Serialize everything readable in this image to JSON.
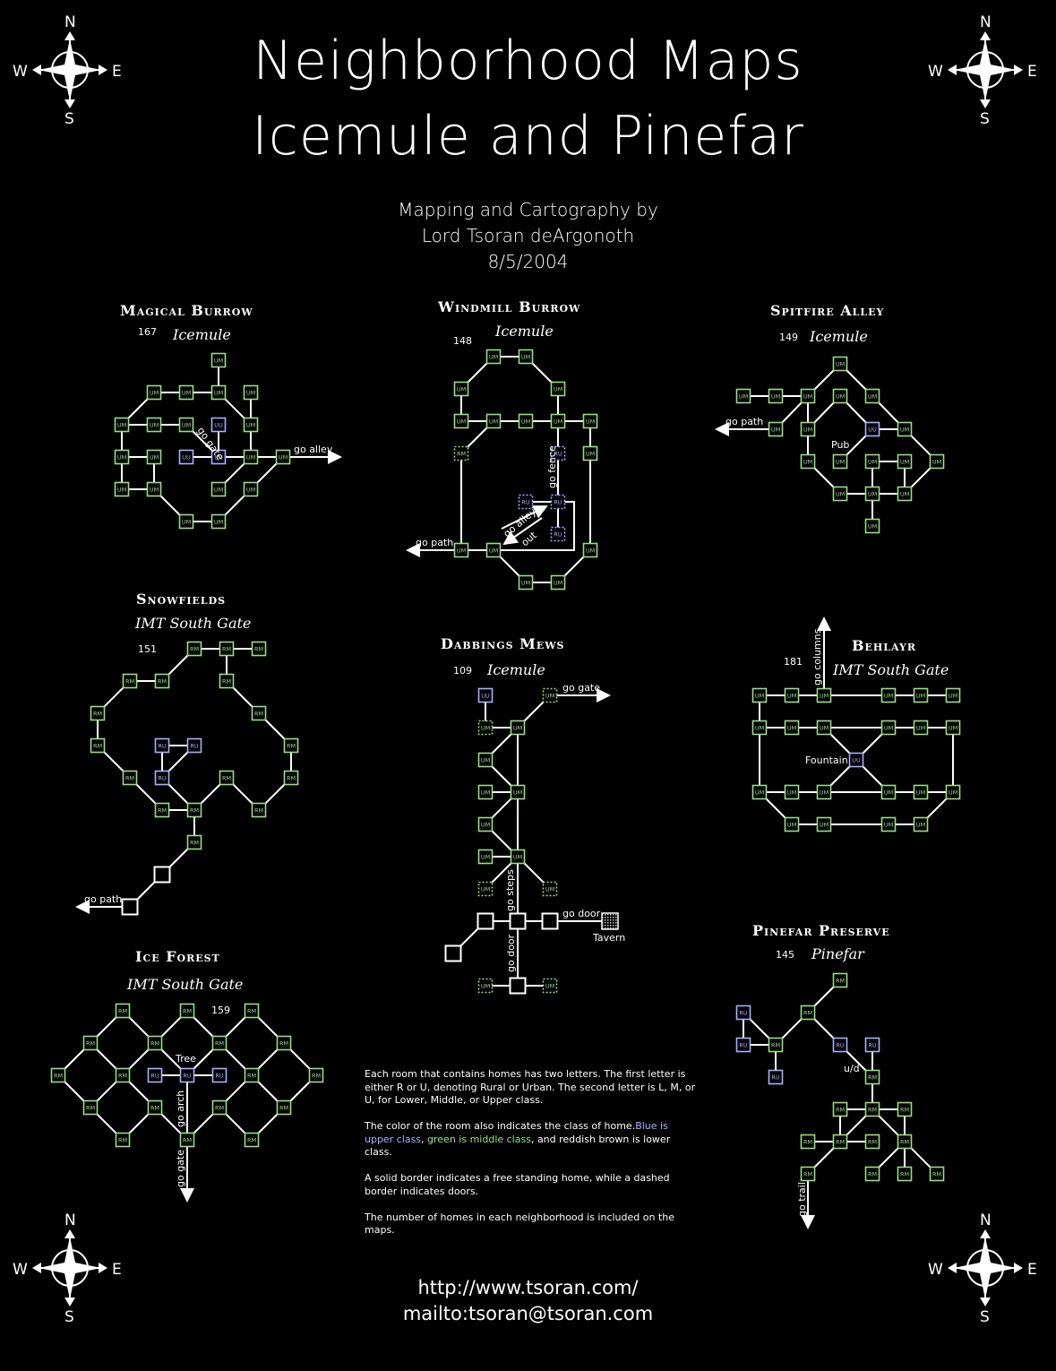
{
  "header": {
    "title_line1": "Neighborhood Maps",
    "title_line2": "Icemule and Pinefar",
    "credit_line1": "Mapping and Cartography by",
    "credit_line2": "Lord Tsoran deArgonoth",
    "credit_line3": "8/5/2004"
  },
  "compass": {
    "n": "N",
    "s": "S",
    "e": "E",
    "w": "W"
  },
  "room_colors": {
    "upper": "#aab0ff",
    "middle": "#99dd88",
    "lower": "#cc9977",
    "plain": "#ffffff"
  },
  "neighborhoods": {
    "magical_burrow": {
      "title": "Magical Burrow",
      "city": "Icemule",
      "count": "167"
    },
    "windmill_burrow": {
      "title": "Windmill Burrow",
      "city": "Icemule",
      "count": "148"
    },
    "spitfire_alley": {
      "title": "Spitfire Alley",
      "city": "Icemule",
      "count": "149"
    },
    "snowfields": {
      "title": "Snowfields",
      "city": "IMT South Gate",
      "count": "151"
    },
    "dabbings_mews": {
      "title": "Dabbings Mews",
      "city": "Icemule",
      "count": "109"
    },
    "behlayr": {
      "title": "Behlayr",
      "city": "IMT South Gate",
      "count": "181"
    },
    "ice_forest": {
      "title": "Ice Forest",
      "city": "IMT South Gate",
      "count": "159"
    },
    "pinefar_preserve": {
      "title": "Pinefar Preserve",
      "city": "Pinefar",
      "count": "145"
    }
  },
  "map_labels": {
    "go_alley": "go alley",
    "go_gate": "go gate",
    "go_path": "go path",
    "go_fence": "go fence",
    "out": "out",
    "pub": "Pub",
    "go_columns": "go columns",
    "fountain": "Fountain",
    "go_steps": "go steps",
    "go_door": "go door",
    "tavern": "Tavern",
    "tree": "Tree",
    "go_arch": "go arch",
    "go_trail": "go trail",
    "ud": "u/d"
  },
  "legend": {
    "p1": "Each room that contains homes has two letters.  The first letter is either R or U, denoting Rural or Urban.  The second letter is L, M, or U, for Lower, Middle, or Upper class.",
    "p2_prefix": "The color of the room also indicates the class of home.",
    "p2_blue": "Blue is upper class",
    "p2_sep": ", ",
    "p2_green": "green is middle class",
    "p2_brown": ", and reddish brown is lower class.",
    "p3": "A solid border indicates a free standing home, while a dashed border indicates doors.",
    "p4": "The number of homes in each neighborhood is included on the maps."
  },
  "footer": {
    "url": "http://www.tsoran.com/",
    "mail": "mailto:tsoran@tsoran.com"
  }
}
